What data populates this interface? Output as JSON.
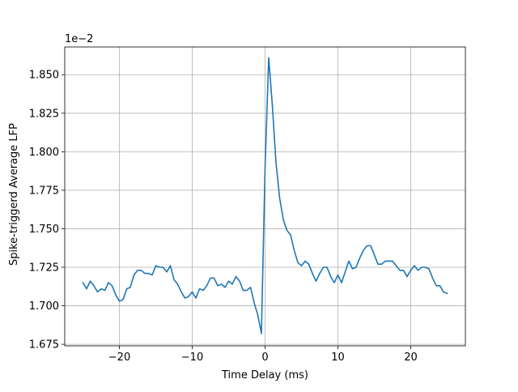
{
  "chart_data": {
    "type": "line",
    "title": "",
    "xlabel": "Time Delay (ms)",
    "ylabel": "Spike-triggerd Average LFP",
    "y_offset_text": "1e−2",
    "xlim": [
      -27.5,
      27.5
    ],
    "ylim": [
      1.674,
      1.868
    ],
    "grid": true,
    "legend": "none",
    "x_ticks": [
      -20,
      -10,
      0,
      10,
      20
    ],
    "x_tick_labels": [
      "−20",
      "−10",
      "0",
      "10",
      "20"
    ],
    "y_ticks": [
      1.675,
      1.7,
      1.725,
      1.75,
      1.775,
      1.8,
      1.825,
      1.85
    ],
    "y_tick_labels": [
      "1.675",
      "1.700",
      "1.725",
      "1.750",
      "1.775",
      "1.800",
      "1.825",
      "1.850"
    ],
    "series": [
      {
        "color": "#1f77b4",
        "x": [
          -25,
          -24.5,
          -24,
          -23.5,
          -23,
          -22.5,
          -22,
          -21.5,
          -21,
          -20.5,
          -20,
          -19.5,
          -19,
          -18.5,
          -18,
          -17.5,
          -17,
          -16.5,
          -16,
          -15.5,
          -15,
          -14.5,
          -14,
          -13.5,
          -13,
          -12.5,
          -12,
          -11.5,
          -11,
          -10.5,
          -10,
          -9.5,
          -9,
          -8.5,
          -8,
          -7.5,
          -7,
          -6.5,
          -6,
          -5.5,
          -5,
          -4.5,
          -4,
          -3.5,
          -3,
          -2.5,
          -2,
          -1.5,
          -1,
          -0.5,
          0,
          0.5,
          1,
          1.5,
          2,
          2.5,
          3,
          3.5,
          4,
          4.5,
          5,
          5.5,
          6,
          6.5,
          7,
          7.5,
          8,
          8.5,
          9,
          9.5,
          10,
          10.5,
          11,
          11.5,
          12,
          12.5,
          13,
          13.5,
          14,
          14.5,
          15,
          15.5,
          16,
          16.5,
          17,
          17.5,
          18,
          18.5,
          19,
          19.5,
          20,
          20.5,
          21,
          21.5,
          22,
          22.5,
          23,
          23.5,
          24,
          24.5,
          25
        ],
        "values": [
          1.715,
          1.711,
          1.716,
          1.713,
          1.709,
          1.711,
          1.71,
          1.715,
          1.713,
          1.707,
          1.703,
          1.704,
          1.711,
          1.712,
          1.72,
          1.723,
          1.723,
          1.721,
          1.721,
          1.72,
          1.726,
          1.725,
          1.725,
          1.722,
          1.726,
          1.717,
          1.714,
          1.709,
          1.705,
          1.706,
          1.709,
          1.705,
          1.711,
          1.71,
          1.713,
          1.718,
          1.718,
          1.713,
          1.714,
          1.712,
          1.716,
          1.714,
          1.719,
          1.716,
          1.71,
          1.71,
          1.712,
          1.702,
          1.694,
          1.682,
          1.79,
          1.861,
          1.83,
          1.793,
          1.77,
          1.756,
          1.749,
          1.746,
          1.736,
          1.728,
          1.726,
          1.729,
          1.727,
          1.721,
          1.716,
          1.721,
          1.725,
          1.725,
          1.719,
          1.715,
          1.72,
          1.715,
          1.722,
          1.729,
          1.724,
          1.725,
          1.731,
          1.736,
          1.739,
          1.739,
          1.733,
          1.727,
          1.727,
          1.729,
          1.729,
          1.729,
          1.726,
          1.723,
          1.723,
          1.719,
          1.723,
          1.726,
          1.723,
          1.725,
          1.725,
          1.724,
          1.718,
          1.713,
          1.713,
          1.709,
          1.708
        ]
      }
    ]
  }
}
